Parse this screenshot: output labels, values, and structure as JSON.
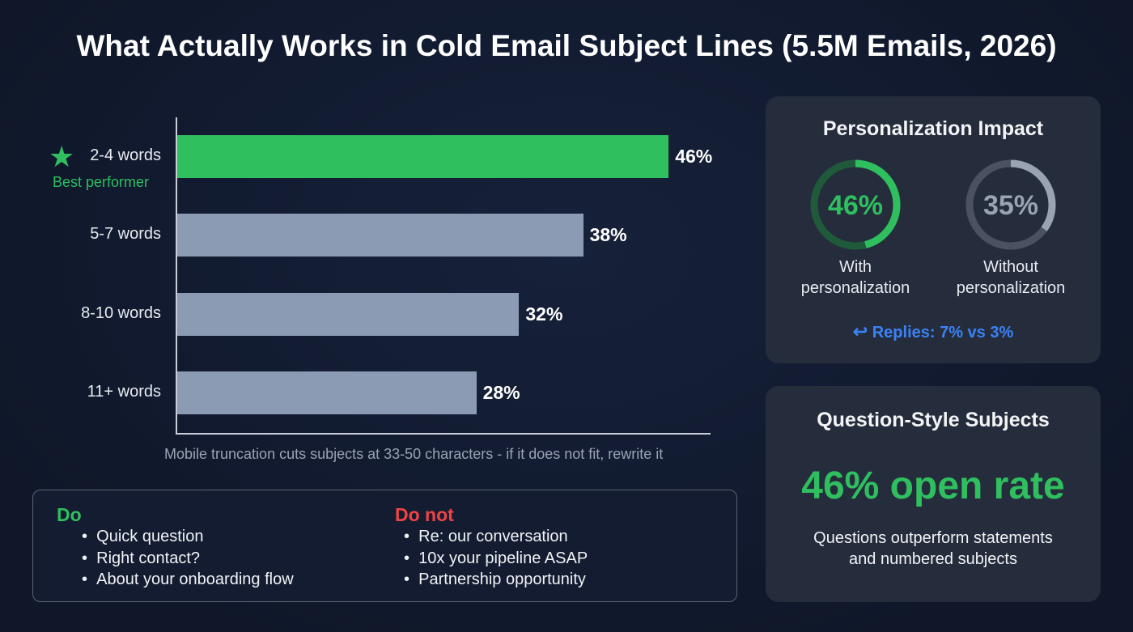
{
  "title": "What Actually Works in Cold Email Subject Lines (5.5M Emails, 2026)",
  "chart_data": {
    "type": "bar",
    "orientation": "horizontal",
    "categories": [
      "2-4 words",
      "5-7 words",
      "8-10 words",
      "11+ words"
    ],
    "values": [
      46,
      38,
      32,
      28
    ],
    "value_labels": [
      "46%",
      "38%",
      "32%",
      "28%"
    ],
    "xlim": [
      0,
      50
    ],
    "highlight": {
      "category": "2-4 words",
      "label": "Best performer",
      "icon": "star-icon"
    },
    "colors": {
      "highlight": "#2fbf5f",
      "default": "#8a9bb3"
    },
    "annotation": "Mobile truncation cuts subjects at 33-50 characters - if it does not fit, rewrite it"
  },
  "do_box": {
    "do_title": "Do",
    "do_items": [
      "Quick question",
      "Right contact?",
      "About your onboarding flow"
    ],
    "dont_title": "Do not",
    "dont_items": [
      "Re: our conversation",
      "10x your pipeline ASAP",
      "Partnership opportunity"
    ],
    "colors": {
      "do": "#2fbf5f",
      "dont": "#ef4444"
    }
  },
  "personalization": {
    "title": "Personalization Impact",
    "rings": [
      {
        "value": 46,
        "label_value": "46%",
        "label": [
          "With",
          "personalization"
        ],
        "color": "#2fbf5f"
      },
      {
        "value": 35,
        "label_value": "35%",
        "label": [
          "Without",
          "personalization"
        ],
        "color": "#9aa3b2"
      }
    ],
    "replies": "Replies: 7% vs 3%",
    "replies_icon": "reply-arrow-icon"
  },
  "question": {
    "title": "Question-Style Subjects",
    "stat": "46% open rate",
    "desc": [
      "Questions outperform statements",
      "and numbered subjects"
    ]
  }
}
